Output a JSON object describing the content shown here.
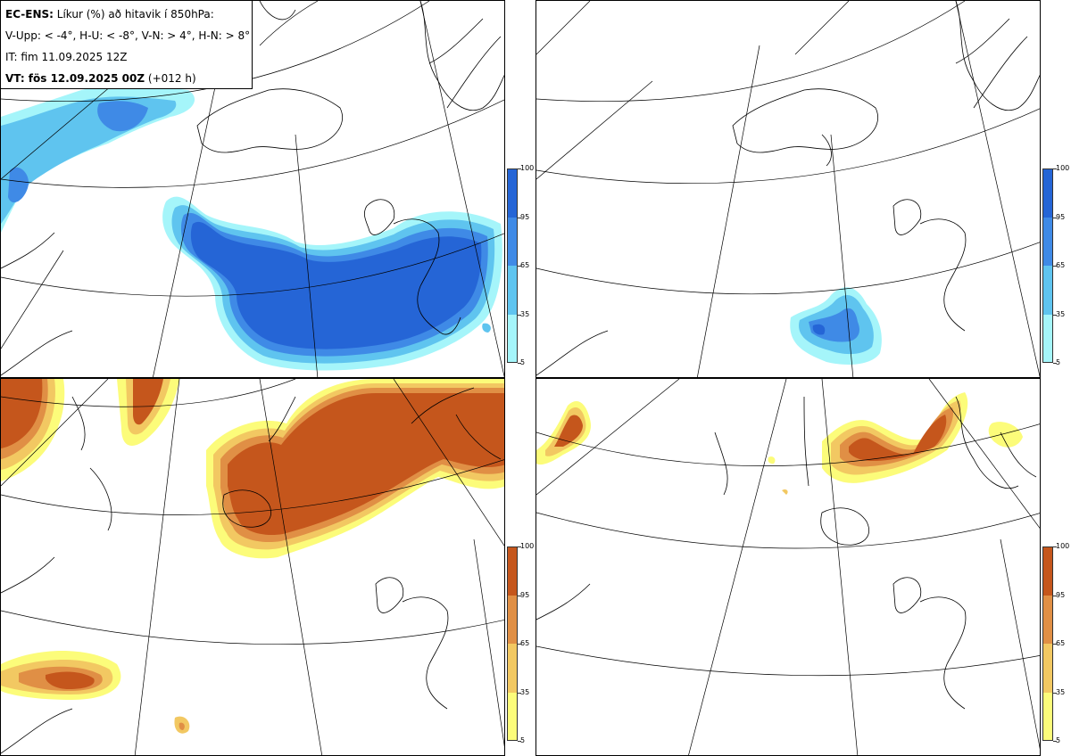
{
  "info": {
    "title_bold": "EC-ENS:",
    "title_rest": "Líkur (%) að hitavik í 850hPa:",
    "thresholds": "V-Upp: < -4°, H-U: < -8°, V-N: > 4°, H-N: > 8°",
    "init_time": "IT: fim 11.09.2025 12Z",
    "valid_bold": "VT: fös 12.09.2025 00Z",
    "valid_rest": "(+012 h)"
  },
  "panels": [
    {
      "id": "V-Upp",
      "scheme": "blue",
      "description": "Probability of 850hPa temperature anomaly < -4°"
    },
    {
      "id": "H-U",
      "scheme": "blue",
      "description": "Probability of 850hPa temperature anomaly < -8°"
    },
    {
      "id": "V-N",
      "scheme": "orange",
      "description": "Probability of 850hPa temperature anomaly > 4°"
    },
    {
      "id": "H-N",
      "scheme": "orange",
      "description": "Probability of 850hPa temperature anomaly > 8°"
    }
  ],
  "colorbar": {
    "tick_labels": [
      "100",
      "95",
      "65",
      "35",
      "5"
    ],
    "blue_colors": [
      "#2565d6",
      "#3f8ae6",
      "#5fc4ef",
      "#a5f5fa"
    ],
    "orange_colors": [
      "#c5561c",
      "#e08f45",
      "#f2c862",
      "#fcfc7a"
    ]
  },
  "colors": {
    "coastline": "#000000",
    "graticule": "#000000",
    "background": "#ffffff"
  }
}
